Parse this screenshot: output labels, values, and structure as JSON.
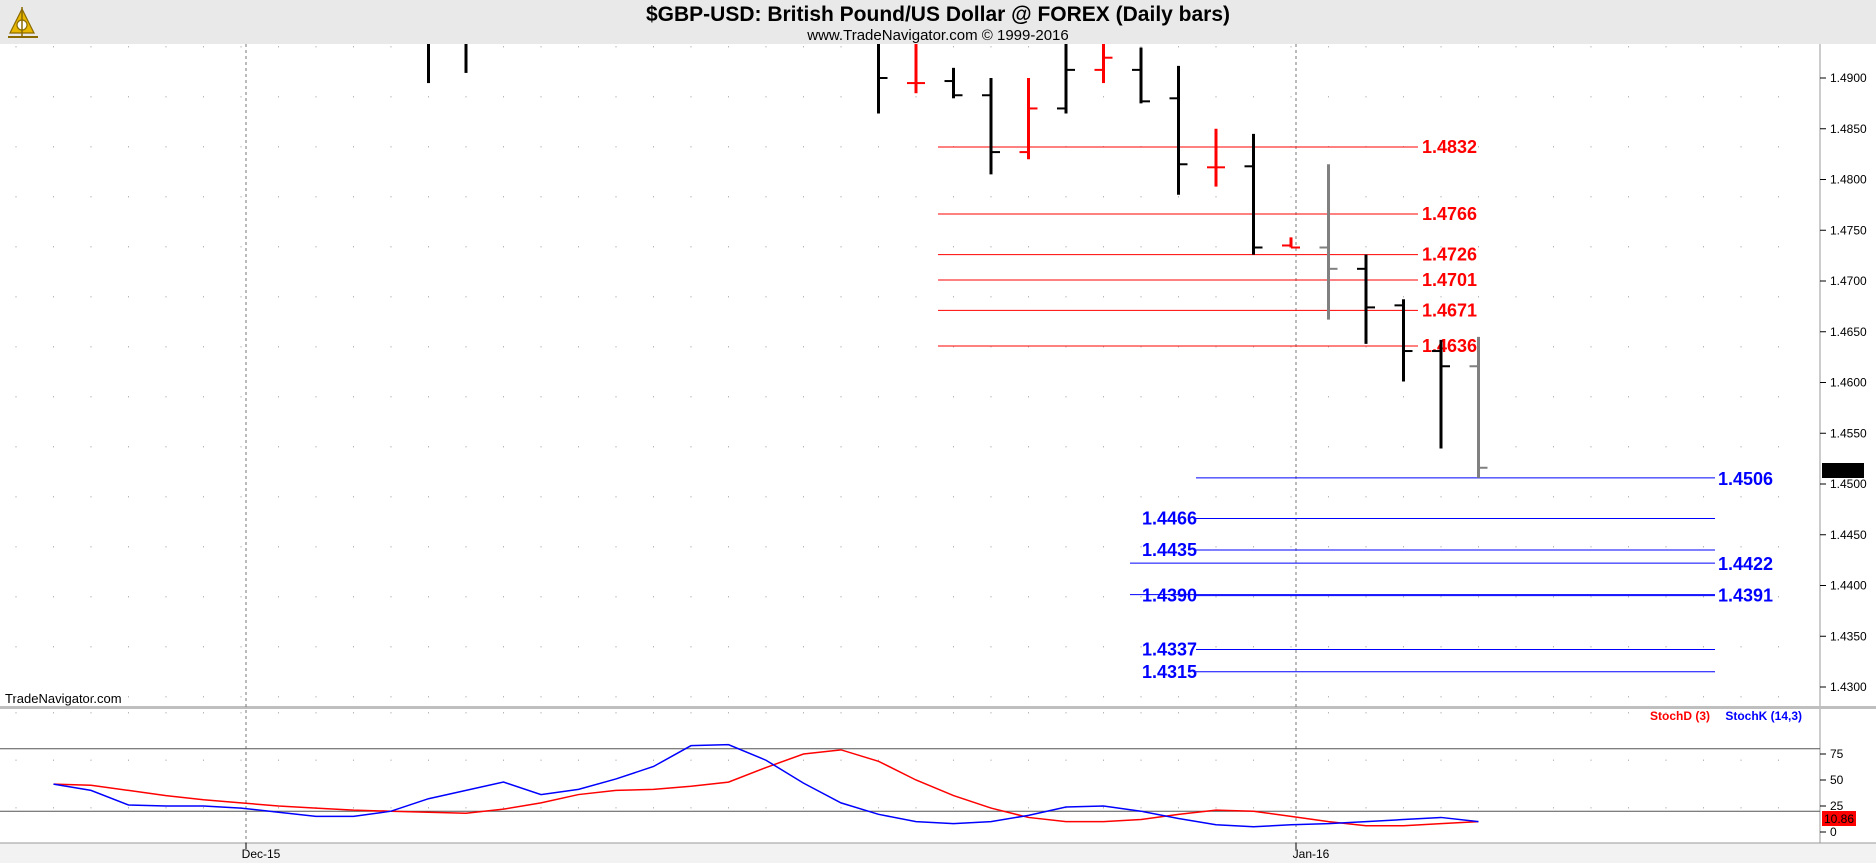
{
  "header": {
    "title": "$GBP-USD:  British Pound/US Dollar @ FOREX  (Daily bars)",
    "subtitle": "www.TradeNavigator.com © 1999-2016",
    "watermark": "TradeNavigator.com",
    "logo_icon": "sextant-logo-icon"
  },
  "colors": {
    "up_bar": "#000000",
    "down_bar": "#ff0000",
    "current_bar": "#808080",
    "resistance": "#ff0000",
    "support": "#0000ff",
    "stoch_d": "#ff0000",
    "stoch_k": "#0000ff",
    "price_badge_bg": "#000000",
    "stoch_badge_bg": "#ff0000"
  },
  "chart_data": [
    {
      "type": "ohlc",
      "title": "$GBP-USD:  British Pound/US Dollar @ FOREX  (Daily bars)",
      "ylim": [
        1.427,
        1.4935
      ],
      "y_ticks": [
        "1.4900",
        "1.4850",
        "1.4800",
        "1.4750",
        "1.4700",
        "1.4650",
        "1.4600",
        "1.4550",
        "1.4500",
        "1.4450",
        "1.4400",
        "1.4350",
        "1.4300"
      ],
      "x_ticks": [
        "Dec-15",
        "Jan-16"
      ],
      "grid": true,
      "bars": [
        {
          "x": 11,
          "high": 1.4935,
          "low": 1.4895,
          "open": null,
          "close": null,
          "color": "up"
        },
        {
          "x": 12,
          "high": 1.4935,
          "low": 1.4905,
          "open": null,
          "close": null,
          "color": "up"
        },
        {
          "x": 23,
          "high": 1.4935,
          "low": 1.4865,
          "open": null,
          "close": 1.49,
          "color": "up"
        },
        {
          "x": 24,
          "high": 1.4935,
          "low": 1.4885,
          "open": 1.4895,
          "close": 1.4895,
          "color": "down"
        },
        {
          "x": 25,
          "high": 1.491,
          "low": 1.488,
          "open": 1.4897,
          "close": 1.4883,
          "color": "up"
        },
        {
          "x": 26,
          "high": 1.49,
          "low": 1.4805,
          "open": 1.4883,
          "close": 1.4827,
          "color": "up"
        },
        {
          "x": 27,
          "high": 1.49,
          "low": 1.482,
          "open": 1.4827,
          "close": 1.487,
          "color": "down"
        },
        {
          "x": 28,
          "high": 1.4935,
          "low": 1.4865,
          "open": 1.487,
          "close": 1.4908,
          "color": "up"
        },
        {
          "x": 29,
          "high": 1.4935,
          "low": 1.4895,
          "open": 1.4908,
          "close": 1.492,
          "color": "down"
        },
        {
          "x": 30,
          "high": 1.493,
          "low": 1.4875,
          "open": 1.4908,
          "close": 1.4877,
          "color": "up"
        },
        {
          "x": 31,
          "high": 1.4912,
          "low": 1.4785,
          "open": 1.488,
          "close": 1.4815,
          "color": "up"
        },
        {
          "x": 32,
          "high": 1.485,
          "low": 1.4793,
          "open": 1.4812,
          "close": 1.4812,
          "color": "down"
        },
        {
          "x": 33,
          "high": 1.4845,
          "low": 1.4726,
          "open": 1.4813,
          "close": 1.4733,
          "color": "up"
        },
        {
          "x": 34,
          "high": 1.4743,
          "low": 1.4733,
          "open": 1.4735,
          "close": 1.4733,
          "color": "down"
        },
        {
          "x": 35,
          "high": 1.4815,
          "low": 1.4662,
          "open": 1.4733,
          "close": 1.4712,
          "color": "current"
        },
        {
          "x": 36,
          "high": 1.4726,
          "low": 1.4638,
          "open": 1.4712,
          "close": 1.4674,
          "color": "up"
        },
        {
          "x": 37,
          "high": 1.4682,
          "low": 1.4601,
          "open": 1.4676,
          "close": 1.4631,
          "color": "up"
        },
        {
          "x": 38,
          "high": 1.4642,
          "low": 1.4535,
          "open": 1.4631,
          "close": 1.4616,
          "color": "up"
        },
        {
          "x": 39,
          "high": 1.4645,
          "low": 1.4506,
          "open": 1.4616,
          "close": 1.4516,
          "color": "current"
        }
      ],
      "resistance_levels": [
        "1.4832",
        "1.4766",
        "1.4726",
        "1.4701",
        "1.4671",
        "1.4636"
      ],
      "support_levels_right": [
        "1.4506",
        "1.4422",
        "1.4391"
      ],
      "support_levels_left": [
        "1.4466",
        "1.4435",
        "1.4390",
        "1.4337",
        "1.4315"
      ],
      "last_price": "1.4516"
    },
    {
      "type": "line",
      "title": "",
      "ylim": [
        0,
        100
      ],
      "y_ticks": [
        "75",
        "50",
        "25",
        "0"
      ],
      "reference_lines": [
        80,
        20
      ],
      "last_value": "10.86",
      "series": [
        {
          "name": "StochD (3)",
          "x": [
            1,
            2,
            3,
            4,
            5,
            6,
            7,
            8,
            9,
            10,
            11,
            12,
            13,
            14,
            15,
            16,
            17,
            18,
            19,
            20,
            21,
            22,
            23,
            24,
            25,
            26,
            27,
            28,
            29,
            30,
            31,
            32,
            33,
            34,
            35,
            36,
            37,
            38,
            39
          ],
          "values": [
            46,
            45,
            40,
            35,
            31,
            28,
            25,
            23,
            21,
            20,
            19,
            18,
            22,
            28,
            36,
            40,
            41,
            44,
            48,
            62,
            75,
            79,
            68,
            50,
            35,
            23,
            14,
            10,
            10,
            12,
            17,
            21,
            20,
            15,
            10,
            6,
            6,
            8,
            10
          ]
        },
        {
          "name": "StochK (14,3)",
          "x": [
            1,
            2,
            3,
            4,
            5,
            6,
            7,
            8,
            9,
            10,
            11,
            12,
            13,
            14,
            15,
            16,
            17,
            18,
            19,
            20,
            21,
            22,
            23,
            24,
            25,
            26,
            27,
            28,
            29,
            30,
            31,
            32,
            33,
            34,
            35,
            36,
            37,
            38,
            39
          ],
          "values": [
            46,
            40,
            26,
            25,
            25,
            23,
            19,
            15,
            15,
            20,
            32,
            40,
            48,
            36,
            41,
            51,
            63,
            83,
            84,
            69,
            47,
            28,
            17,
            10,
            8,
            10,
            16,
            24,
            25,
            20,
            13,
            7,
            5,
            7,
            8,
            10,
            12,
            14,
            10
          ]
        }
      ]
    }
  ]
}
